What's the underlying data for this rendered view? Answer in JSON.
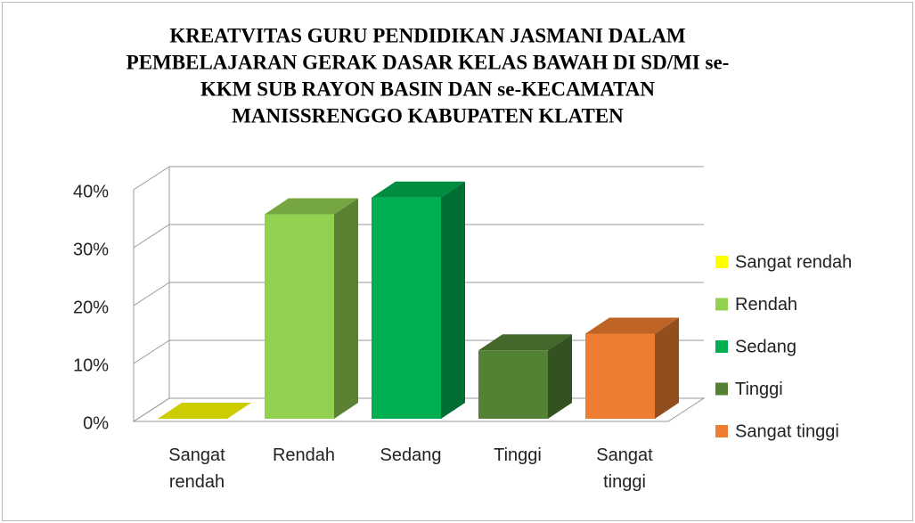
{
  "chart_data": {
    "type": "bar3d",
    "title": [
      "KREATVITAS GURU PENDIDIKAN JASMANI DALAM",
      "PEMBELAJARAN GERAK DASAR KELAS BAWAH DI SD/MI se-",
      "KKM SUB RAYON BASIN DAN se-KECAMATAN",
      "MANISSRENGGO KABUPATEN KLATEN"
    ],
    "categories": [
      "Sangat rendah",
      "Rendah",
      "Sedang",
      "Tinggi",
      "Sangat tinggi"
    ],
    "values": [
      0,
      35.3,
      38.2,
      11.8,
      14.7
    ],
    "colors": [
      "#ffff00",
      "#92d050",
      "#00b050",
      "#548235",
      "#ed7d31"
    ],
    "ylim": [
      0,
      40
    ],
    "yticks": [
      {
        "value": 0,
        "label": "0%"
      },
      {
        "value": 10,
        "label": "10%"
      },
      {
        "value": 20,
        "label": "20%"
      },
      {
        "value": 30,
        "label": "30%"
      },
      {
        "value": 40,
        "label": "40%"
      }
    ],
    "grid": true,
    "legend": "right"
  }
}
